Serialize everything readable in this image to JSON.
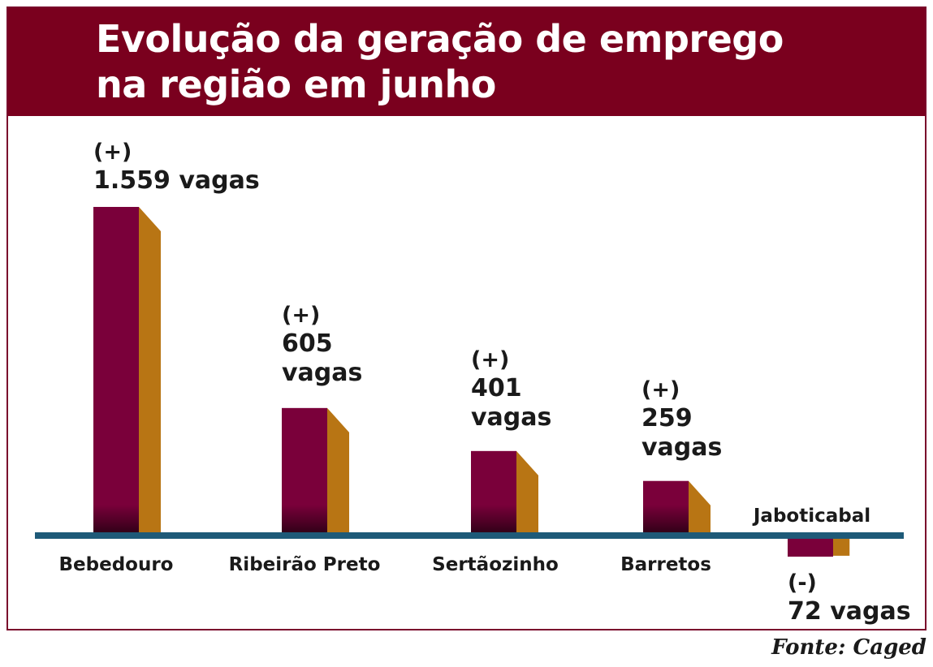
{
  "title": "Evolução da geração de emprego\nna região em junho",
  "source": "Fonte: Caged",
  "colors": {
    "front": "#7a003a",
    "side": "#b87514",
    "baseline": "#1e5a78",
    "title_bg": "#7a001e"
  },
  "chart_data": {
    "type": "bar",
    "categories": [
      "Bebedouro",
      "Ribeirão Preto",
      "Sertãozinho",
      "Barretos",
      "Jaboticabal"
    ],
    "values": [
      1559,
      605,
      401,
      259,
      -72
    ],
    "data_labels": [
      [
        "(+)",
        "1.559 vagas"
      ],
      [
        "(+)",
        "605",
        "vagas"
      ],
      [
        "(+)",
        "401",
        "vagas"
      ],
      [
        "(+)",
        "259",
        "vagas"
      ],
      [
        "(-)",
        "72 vagas"
      ]
    ],
    "grid": false,
    "legend": "none"
  }
}
